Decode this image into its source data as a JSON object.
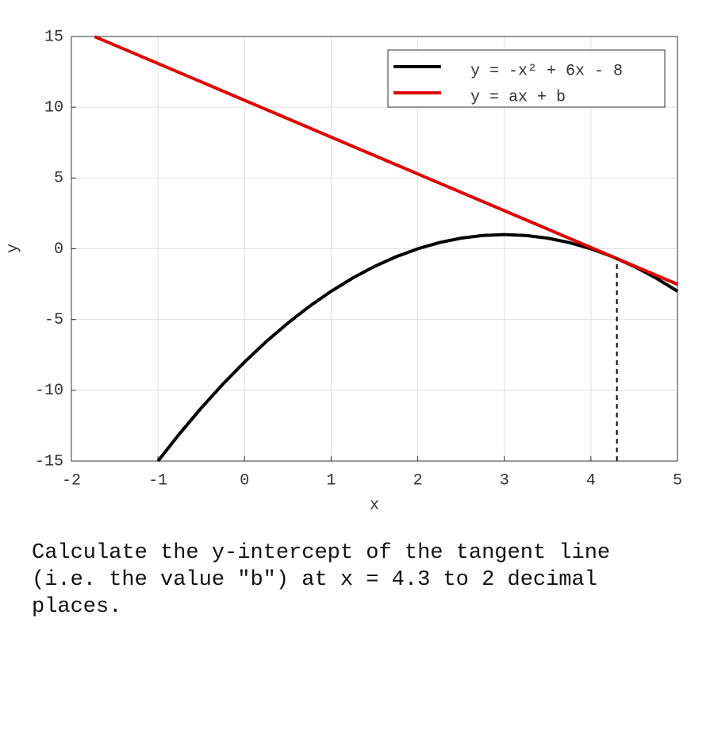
{
  "chart_data": {
    "type": "line",
    "xlabel": "x",
    "ylabel": "y",
    "xlim": [
      -2,
      5
    ],
    "ylim": [
      -15,
      15
    ],
    "xticks": [
      -2,
      -1,
      0,
      1,
      2,
      3,
      4,
      5
    ],
    "yticks": [
      -15,
      -10,
      -5,
      0,
      5,
      10,
      15
    ],
    "grid": true,
    "legend": "upper right",
    "series": [
      {
        "name": "y = -x² + 6x - 8",
        "color": "#000000",
        "x": [
          -1,
          -0.75,
          -0.5,
          -0.25,
          0,
          0.25,
          0.5,
          0.75,
          1,
          1.25,
          1.5,
          1.75,
          2,
          2.25,
          2.5,
          2.75,
          3,
          3.25,
          3.5,
          3.75,
          4,
          4.25,
          4.5,
          4.75,
          5
        ],
        "values": [
          -15,
          -13.0625,
          -11.25,
          -9.5625,
          -8,
          -6.5625,
          -5.25,
          -4.0625,
          -3,
          -2.0625,
          -1.25,
          -0.5625,
          0,
          0.4375,
          0.75,
          0.9375,
          1,
          0.9375,
          0.75,
          0.4375,
          0,
          -0.5625,
          -1.25,
          -2.0625,
          -3
        ]
      },
      {
        "name": "y = ax + b",
        "color": "#e00000",
        "x": [
          -1.73,
          5
        ],
        "values": [
          14.99,
          -2.51
        ]
      }
    ],
    "vline": {
      "x": 4.3,
      "y": [
        -15,
        -0.69
      ]
    }
  },
  "question": "Calculate the y-intercept of the tangent line (i.e. the value \"b\") at x = 4.3 to 2 decimal places."
}
